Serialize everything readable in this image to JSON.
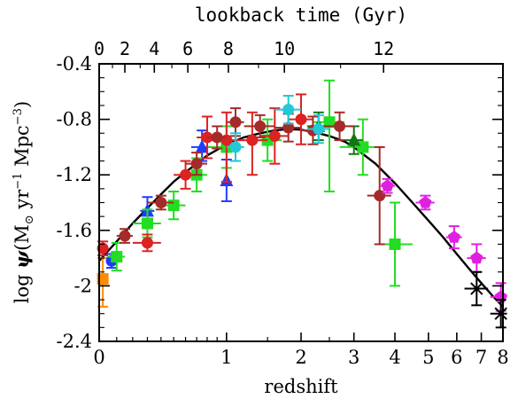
{
  "chart_data": {
    "type": "scatter",
    "xlabel": "redshift",
    "ylabel_parts": [
      "log ",
      "ψ",
      "(M",
      "⊙",
      " yr",
      "−1",
      " Mpc",
      "−3",
      ")"
    ],
    "top_axis_title": "lookback time (Gyr)",
    "x_scale": "log(1+z)",
    "xlim": [
      0,
      8
    ],
    "ylim": [
      -2.4,
      -0.4
    ],
    "x_ticks": [
      0,
      1,
      2,
      3,
      4,
      5,
      6,
      7,
      8
    ],
    "x_tick_labels": [
      "0",
      "1",
      "2",
      "3",
      "4",
      "5",
      "6",
      "7",
      "8"
    ],
    "x_minor_ticks": [
      0.1,
      0.2,
      0.3,
      0.4,
      0.5,
      0.6,
      0.7,
      0.8,
      0.9,
      1.5,
      2.5
    ],
    "y_ticks": [
      -2.4,
      -2.0,
      -1.6,
      -1.2,
      -0.8,
      -0.4
    ],
    "y_tick_labels": [
      "-2.4",
      "-2",
      "-1.6",
      "-1.2",
      "-0.8",
      "-0.4"
    ],
    "top_ticks": [
      {
        "label": "0",
        "z": 0.0
      },
      {
        "label": "2",
        "z": 0.15
      },
      {
        "label": "4",
        "z": 0.35
      },
      {
        "label": "6",
        "z": 0.62
      },
      {
        "label": "8",
        "z": 1.02
      },
      {
        "label": "10",
        "z": 1.74
      },
      {
        "label": "12",
        "z": 3.7
      }
    ],
    "fit_curve": {
      "name": "",
      "color": "#000000",
      "points": [
        [
          0.0,
          -1.82
        ],
        [
          0.1,
          -1.68
        ],
        [
          0.2,
          -1.55
        ],
        [
          0.3,
          -1.44
        ],
        [
          0.4,
          -1.34
        ],
        [
          0.5,
          -1.25
        ],
        [
          0.6,
          -1.18
        ],
        [
          0.7,
          -1.12
        ],
        [
          0.8,
          -1.06
        ],
        [
          0.9,
          -1.02
        ],
        [
          1.0,
          -0.98
        ],
        [
          1.2,
          -0.93
        ],
        [
          1.4,
          -0.9
        ],
        [
          1.6,
          -0.88
        ],
        [
          1.8,
          -0.87
        ],
        [
          2.0,
          -0.875
        ],
        [
          2.2,
          -0.89
        ],
        [
          2.5,
          -0.92
        ],
        [
          2.8,
          -0.96
        ],
        [
          3.0,
          -1.0
        ],
        [
          3.5,
          -1.12
        ],
        [
          4.0,
          -1.26
        ],
        [
          4.5,
          -1.4
        ],
        [
          5.0,
          -1.53
        ],
        [
          5.5,
          -1.65
        ],
        [
          6.0,
          -1.77
        ],
        [
          6.5,
          -1.88
        ],
        [
          7.0,
          -1.98
        ],
        [
          7.5,
          -2.07
        ],
        [
          8.0,
          -2.15
        ]
      ]
    },
    "series": [
      {
        "marker": "square",
        "color": "#ff8c00",
        "points": [
          {
            "x": 0.02,
            "y": -1.95,
            "xerr": [
              0.0,
              0.02
            ],
            "yerr": [
              0.2,
              0.15
            ]
          }
        ]
      },
      {
        "marker": "circle",
        "color": "#1e3cff",
        "points": [
          {
            "x": 0.07,
            "y": -1.82,
            "xerr": [
              0.03,
              0.03
            ],
            "yerr": [
              0.05,
              0.05
            ]
          }
        ]
      },
      {
        "marker": "triangle",
        "color": "#1e3cff",
        "points": [
          {
            "x": 0.3,
            "y": -1.46,
            "xerr": [
              0.05,
              0.05
            ],
            "yerr": [
              0.1,
              0.1
            ]
          },
          {
            "x": 0.75,
            "y": -1.0,
            "xerr": [
              0.1,
              0.1
            ],
            "yerr": [
              0.1,
              0.12
            ]
          },
          {
            "x": 1.0,
            "y": -1.24,
            "xerr": [
              0.0,
              0.0
            ],
            "yerr": [
              0.15,
              0.15
            ]
          }
        ]
      },
      {
        "marker": "square",
        "color": "#22dd22",
        "points": [
          {
            "x": 0.1,
            "y": -1.79,
            "xerr": [
              0.05,
              0.05
            ],
            "yerr": [
              0.1,
              0.1
            ]
          },
          {
            "x": 0.3,
            "y": -1.55,
            "xerr": [
              0.1,
              0.1
            ],
            "yerr": [
              0.1,
              0.1
            ]
          },
          {
            "x": 0.5,
            "y": -1.42,
            "xerr": [
              0.1,
              0.1
            ],
            "yerr": [
              0.1,
              0.1
            ]
          },
          {
            "x": 0.7,
            "y": -1.2,
            "xerr": [
              0.1,
              0.1
            ],
            "yerr": [
              0.12,
              0.12
            ]
          },
          {
            "x": 1.0,
            "y": -1.0,
            "xerr": [
              0.2,
              0.2
            ],
            "yerr": [
              0.15,
              0.15
            ]
          },
          {
            "x": 1.5,
            "y": -0.95,
            "xerr": [
              0.2,
              0.2
            ],
            "yerr": [
              0.15,
              0.15
            ]
          },
          {
            "x": 2.5,
            "y": -0.82,
            "xerr": [
              0.3,
              0.3
            ],
            "yerr": [
              0.5,
              0.3
            ]
          },
          {
            "x": 3.2,
            "y": -1.0,
            "xerr": [
              0.5,
              0.5
            ],
            "yerr": [
              0.2,
              0.2
            ]
          },
          {
            "x": 4.0,
            "y": -1.7,
            "xerr": [
              0.5,
              0.5
            ],
            "yerr": [
              0.3,
              0.3
            ]
          }
        ]
      },
      {
        "marker": "triangle",
        "color": "#117711",
        "points": [
          {
            "x": 2.3,
            "y": -0.85,
            "xerr": [
              0.2,
              0.2
            ],
            "yerr": [
              0.1,
              0.1
            ]
          },
          {
            "x": 3.0,
            "y": -0.95,
            "xerr": [
              0.2,
              0.2
            ],
            "yerr": [
              0.1,
              0.1
            ]
          }
        ]
      },
      {
        "marker": "circle",
        "color": "#dd2222",
        "points": [
          {
            "x": 0.02,
            "y": -1.73,
            "xerr": [
              0.0,
              0.02
            ],
            "yerr": [
              0.05,
              0.05
            ]
          },
          {
            "x": 0.3,
            "y": -1.69,
            "xerr": [
              0.1,
              0.1
            ],
            "yerr": [
              0.06,
              0.06
            ]
          },
          {
            "x": 0.6,
            "y": -1.2,
            "xerr": [
              0.1,
              0.1
            ],
            "yerr": [
              0.1,
              0.1
            ]
          },
          {
            "x": 0.8,
            "y": -0.93,
            "xerr": [
              0.1,
              0.1
            ],
            "yerr": [
              0.15,
              0.15
            ]
          },
          {
            "x": 1.0,
            "y": -0.95,
            "xerr": [
              0.2,
              0.2
            ],
            "yerr": [
              0.3,
              0.2
            ]
          },
          {
            "x": 1.3,
            "y": -0.95,
            "xerr": [
              0.2,
              0.2
            ],
            "yerr": [
              0.25,
              0.2
            ]
          },
          {
            "x": 1.6,
            "y": -0.92,
            "xerr": [
              0.2,
              0.2
            ],
            "yerr": [
              0.2,
              0.2
            ]
          },
          {
            "x": 2.0,
            "y": -0.8,
            "xerr": [
              0.2,
              0.2
            ],
            "yerr": [
              0.18,
              0.18
            ]
          }
        ]
      },
      {
        "marker": "circle",
        "color": "#a52a2a",
        "points": [
          {
            "x": 0.15,
            "y": -1.64,
            "xerr": [
              0.05,
              0.05
            ],
            "yerr": [
              0.05,
              0.05
            ]
          },
          {
            "x": 0.4,
            "y": -1.4,
            "xerr": [
              0.1,
              0.1
            ],
            "yerr": [
              0.05,
              0.05
            ]
          },
          {
            "x": 0.7,
            "y": -1.12,
            "xerr": [
              0.1,
              0.1
            ],
            "yerr": [
              0.08,
              0.08
            ]
          },
          {
            "x": 0.9,
            "y": -0.93,
            "xerr": [
              0.1,
              0.1
            ],
            "yerr": [
              0.08,
              0.08
            ]
          },
          {
            "x": 1.1,
            "y": -0.82,
            "xerr": [
              0.1,
              0.1
            ],
            "yerr": [
              0.1,
              0.1
            ]
          },
          {
            "x": 1.4,
            "y": -0.85,
            "xerr": [
              0.2,
              0.2
            ],
            "yerr": [
              0.08,
              0.08
            ]
          },
          {
            "x": 1.8,
            "y": -0.86,
            "xerr": [
              0.2,
              0.2
            ],
            "yerr": [
              0.1,
              0.1
            ]
          },
          {
            "x": 2.2,
            "y": -0.88,
            "xerr": [
              0.2,
              0.2
            ],
            "yerr": [
              0.1,
              0.1
            ]
          },
          {
            "x": 2.7,
            "y": -0.85,
            "xerr": [
              0.3,
              0.3
            ],
            "yerr": [
              0.1,
              0.1
            ]
          },
          {
            "x": 3.6,
            "y": -1.35,
            "xerr": [
              0.3,
              0.3
            ],
            "yerr": [
              0.35,
              0.35
            ]
          }
        ]
      },
      {
        "marker": "circle",
        "color": "#22c8d8",
        "points": [
          {
            "x": 1.1,
            "y": -1.0,
            "xerr": [
              0.1,
              0.1
            ],
            "yerr": [
              0.1,
              0.1
            ]
          },
          {
            "x": 1.8,
            "y": -0.73,
            "xerr": [
              0.2,
              0.2
            ],
            "yerr": [
              0.1,
              0.1
            ]
          },
          {
            "x": 2.3,
            "y": -0.87,
            "xerr": [
              0.2,
              0.2
            ],
            "yerr": [
              0.1,
              0.1
            ]
          }
        ]
      },
      {
        "marker": "pentagon",
        "color": "#e020e0",
        "points": [
          {
            "x": 3.8,
            "y": -1.28,
            "xerr": [
              0.2,
              0.2
            ],
            "yerr": [
              0.05,
              0.05
            ]
          },
          {
            "x": 4.9,
            "y": -1.4,
            "xerr": [
              0.3,
              0.3
            ],
            "yerr": [
              0.05,
              0.05
            ]
          },
          {
            "x": 5.9,
            "y": -1.65,
            "xerr": [
              0.3,
              0.3
            ],
            "yerr": [
              0.08,
              0.08
            ]
          },
          {
            "x": 6.8,
            "y": -1.8,
            "xerr": [
              0.4,
              0.4
            ],
            "yerr": [
              0.1,
              0.1
            ]
          },
          {
            "x": 7.9,
            "y": -2.08,
            "xerr": [
              0.5,
              0.3
            ],
            "yerr": [
              0.1,
              0.1
            ]
          }
        ]
      },
      {
        "marker": "cross",
        "color": "#000000",
        "points": [
          {
            "x": 6.8,
            "y": -2.02,
            "xerr": [
              0.5,
              0.5
            ],
            "yerr": [
              0.12,
              0.12
            ]
          },
          {
            "x": 7.9,
            "y": -2.2,
            "xerr": [
              0.5,
              0.3
            ],
            "yerr": [
              0.1,
              0.1
            ]
          }
        ]
      }
    ]
  }
}
